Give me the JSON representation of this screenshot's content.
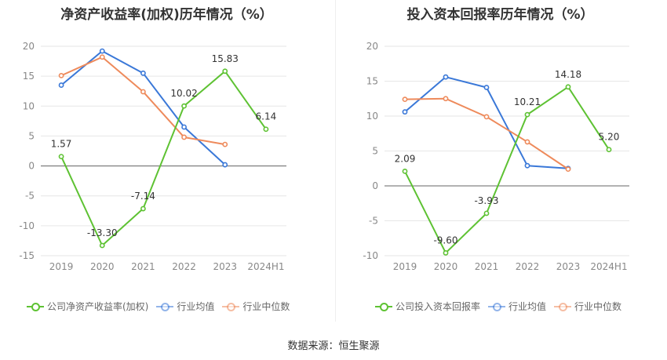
{
  "source_label": "数据来源：恒生聚源",
  "chart_data": [
    {
      "type": "line",
      "title": "净资产收益率(加权)历年情况（%）",
      "categories": [
        "2019",
        "2020",
        "2021",
        "2022",
        "2023",
        "2024H1"
      ],
      "ylim": [
        -15,
        20
      ],
      "yticks": [
        "20",
        "15",
        "10",
        "5",
        "0",
        "-5",
        "-10",
        "-15"
      ],
      "grid": true,
      "legend_position": "bottom",
      "series": [
        {
          "name": "公司净资产收益率(加权)",
          "color": "#5ec233",
          "values": [
            1.57,
            -13.3,
            -7.14,
            10.02,
            15.83,
            6.14
          ],
          "labels": [
            "1.57",
            "-13.30",
            "-7.14",
            "10.02",
            "15.83",
            "6.14"
          ]
        },
        {
          "name": "行业均值",
          "color": "#3a78d8",
          "values": [
            13.5,
            19.2,
            15.5,
            6.5,
            0.2,
            null
          ]
        },
        {
          "name": "行业中位数",
          "color": "#ee8a5b",
          "values": [
            15.1,
            18.2,
            12.4,
            4.8,
            3.6,
            null
          ]
        }
      ]
    },
    {
      "type": "line",
      "title": "投入资本回报率历年情况（%）",
      "categories": [
        "2019",
        "2020",
        "2021",
        "2022",
        "2023",
        "2024H1"
      ],
      "ylim": [
        -10,
        20
      ],
      "yticks": [
        "20",
        "15",
        "10",
        "5",
        "0",
        "-5",
        "-10"
      ],
      "grid": true,
      "legend_position": "bottom",
      "series": [
        {
          "name": "公司投入资本回报率",
          "color": "#5ec233",
          "values": [
            2.09,
            -9.6,
            -3.93,
            10.21,
            14.18,
            5.2
          ],
          "labels": [
            "2.09",
            "-9.60",
            "-3.93",
            "10.21",
            "14.18",
            "5.20"
          ]
        },
        {
          "name": "行业均值",
          "color": "#3a78d8",
          "values": [
            10.6,
            15.6,
            14.1,
            2.9,
            2.5,
            null
          ]
        },
        {
          "name": "行业中位数",
          "color": "#ee8a5b",
          "values": [
            12.4,
            12.5,
            9.9,
            6.3,
            2.4,
            null
          ]
        }
      ]
    }
  ]
}
